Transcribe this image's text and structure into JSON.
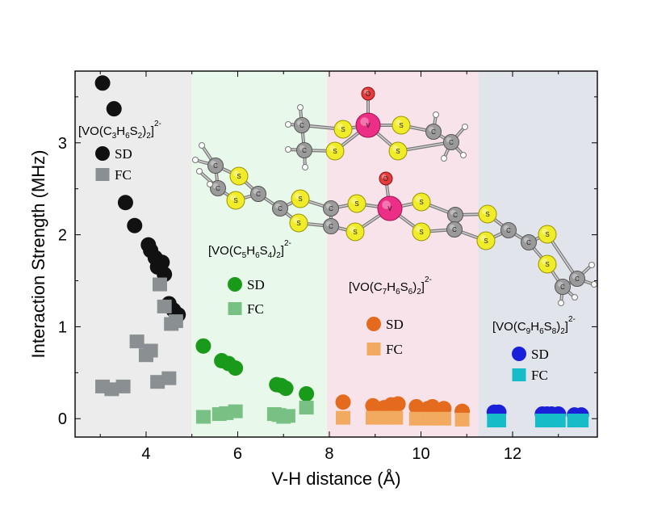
{
  "chart_data": {
    "type": "scatter",
    "xlabel": "V-H distance (Å)",
    "ylabel": "Interaction Strength (MHz)",
    "xlim": [
      2.45,
      13.85
    ],
    "ylim": [
      -0.2,
      3.78
    ],
    "xticks": [
      4,
      6,
      8,
      10,
      12
    ],
    "yticks": [
      0,
      1,
      2,
      3
    ],
    "regions": [
      {
        "name": "region-c3",
        "x_start": 2.45,
        "x_end": 5.0,
        "color": "#ececec"
      },
      {
        "name": "region-c5",
        "x_start": 5.0,
        "x_end": 7.95,
        "color": "#e8f8ea"
      },
      {
        "name": "region-c7",
        "x_start": 7.95,
        "x_end": 11.25,
        "color": "#f9e3ea"
      },
      {
        "name": "region-c9",
        "x_start": 11.25,
        "x_end": 13.85,
        "color": "#e2e4ec"
      }
    ],
    "groups": [
      {
        "name": "c3",
        "formula": {
          "pre": "[VO(C",
          "s1": "3",
          "m1": "H",
          "s2": "6",
          "m2": "S",
          "s3": "2",
          "post": ")",
          "s4": "2",
          "post2": "]",
          "sup": "2-"
        },
        "sd_color": "#111111",
        "fc_color": "#8a8f92",
        "series": [
          {
            "name": "SD",
            "x": [
              3.05,
              3.3,
              3.55,
              3.75,
              4.05,
              4.1,
              4.2,
              4.25,
              4.35,
              4.4,
              4.5,
              4.6,
              4.7
            ],
            "y": [
              3.65,
              3.37,
              2.35,
              2.1,
              1.89,
              1.83,
              1.75,
              1.65,
              1.7,
              1.57,
              1.25,
              1.18,
              1.13
            ]
          },
          {
            "name": "FC",
            "x": [
              3.05,
              3.25,
              3.5,
              3.8,
              4.0,
              4.1,
              4.25,
              4.3,
              4.4,
              4.5,
              4.55,
              4.65
            ],
            "y": [
              0.35,
              0.32,
              0.35,
              0.84,
              0.69,
              0.74,
              0.4,
              1.46,
              1.22,
              0.44,
              1.03,
              1.06
            ]
          }
        ]
      },
      {
        "name": "c5",
        "formula": {
          "pre": "[VO(C",
          "s1": "5",
          "m1": "H",
          "s2": "6",
          "m2": "S",
          "s3": "4",
          "post": ")",
          "s4": "2",
          "post2": "]",
          "sup": "2-"
        },
        "sd_color": "#1a9a1a",
        "fc_color": "#78c084",
        "series": [
          {
            "name": "SD",
            "x": [
              5.25,
              5.65,
              5.8,
              5.95,
              6.85,
              6.95,
              7.05,
              7.5
            ],
            "y": [
              0.79,
              0.63,
              0.6,
              0.55,
              0.37,
              0.36,
              0.33,
              0.27
            ]
          },
          {
            "name": "FC",
            "x": [
              5.25,
              5.6,
              5.75,
              5.95,
              6.8,
              6.9,
              7.0,
              7.1,
              7.5
            ],
            "y": [
              0.02,
              0.05,
              0.06,
              0.08,
              0.05,
              0.04,
              0.02,
              0.03,
              0.12
            ]
          }
        ]
      },
      {
        "name": "c7",
        "formula": {
          "pre": "[VO(C",
          "s1": "7",
          "m1": "H",
          "s2": "6",
          "m2": "S",
          "s3": "6",
          "post": ")",
          "s4": "2",
          "post2": "]",
          "sup": "2-"
        },
        "sd_color": "#e46a1e",
        "fc_color": "#f2a960",
        "series": [
          {
            "name": "SD",
            "x": [
              8.3,
              8.95,
              9.2,
              9.35,
              9.5,
              9.9,
              10.15,
              10.25,
              10.5,
              10.9
            ],
            "y": [
              0.18,
              0.14,
              0.12,
              0.15,
              0.16,
              0.13,
              0.11,
              0.13,
              0.11,
              0.08
            ]
          },
          {
            "name": "FC",
            "x": [
              8.3,
              8.95,
              9.2,
              9.45,
              9.9,
              10.2,
              10.5,
              10.9
            ],
            "y": [
              0.01,
              0.01,
              0.01,
              0.01,
              0.0,
              0.0,
              0.0,
              -0.01
            ]
          }
        ]
      },
      {
        "name": "c9",
        "formula": {
          "pre": "[VO(C",
          "s1": "9",
          "m1": "H",
          "s2": "6",
          "m2": "S",
          "s3": "8",
          "post": ")",
          "s4": "2",
          "post2": "]",
          "sup": "2-"
        },
        "sd_color": "#1a1fd9",
        "fc_color": "#17bcc9",
        "series": [
          {
            "name": "SD",
            "x": [
              11.6,
              11.7,
              12.65,
              12.75,
              12.85,
              13.0,
              13.35,
              13.5
            ],
            "y": [
              0.07,
              0.07,
              0.05,
              0.05,
              0.05,
              0.05,
              0.04,
              0.04
            ]
          },
          {
            "name": "FC",
            "x": [
              11.6,
              11.7,
              12.65,
              12.75,
              12.85,
              13.0,
              13.35,
              13.5
            ],
            "y": [
              -0.02,
              -0.02,
              -0.02,
              -0.02,
              -0.02,
              -0.02,
              -0.02,
              -0.02
            ]
          }
        ]
      }
    ],
    "annotations": {
      "molecule_labels": [
        "C",
        "S",
        "V",
        "O"
      ]
    }
  }
}
